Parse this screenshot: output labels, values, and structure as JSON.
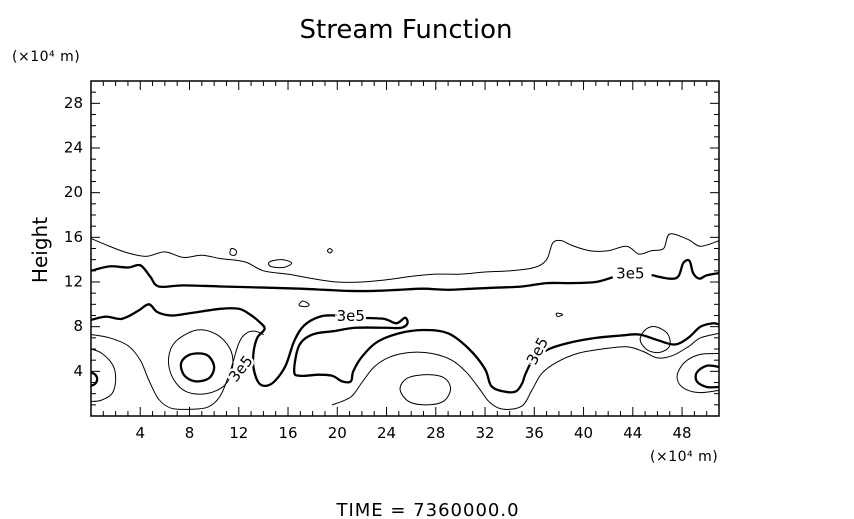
{
  "chart_data": {
    "type": "contour",
    "title": "Stream Function",
    "xlabel": "",
    "ylabel": "Height",
    "x_unit": "(×10⁴ m)",
    "y_unit": "(×10⁴ m)",
    "xlim": [
      0,
      51
    ],
    "ylim": [
      0,
      30
    ],
    "x_ticks": [
      4,
      8,
      12,
      16,
      20,
      24,
      28,
      32,
      36,
      40,
      44,
      48
    ],
    "y_ticks": [
      4,
      8,
      12,
      16,
      20,
      24,
      28
    ],
    "grid": false,
    "footer": "TIME  =  7360000.0",
    "contour_labels": [
      {
        "text": "3e5",
        "x": 43.8,
        "y": 12.7,
        "angle": 0
      },
      {
        "text": "3e5",
        "x": 21.1,
        "y": 8.9,
        "angle": 0
      },
      {
        "text": "3e5",
        "x": 12.2,
        "y": 4.2,
        "angle": -52
      },
      {
        "text": "3e5",
        "x": 36.3,
        "y": 5.8,
        "angle": -62
      }
    ],
    "contours": [
      {
        "role": "upper-thin",
        "weight": "thin",
        "closed": false,
        "points": [
          [
            0,
            15.9
          ],
          [
            1.5,
            15.2
          ],
          [
            3,
            14.6
          ],
          [
            4.5,
            14.3
          ],
          [
            6,
            14.7
          ],
          [
            7.5,
            14.2
          ],
          [
            9,
            14.4
          ],
          [
            10.5,
            14.1
          ],
          [
            12.5,
            13.8
          ],
          [
            14,
            13.0
          ],
          [
            16,
            12.7
          ],
          [
            18,
            12.3
          ],
          [
            20,
            12.0
          ],
          [
            22,
            12.0
          ],
          [
            24,
            12.2
          ],
          [
            26,
            12.5
          ],
          [
            28,
            12.7
          ],
          [
            30,
            12.7
          ],
          [
            32,
            12.9
          ],
          [
            34,
            13.0
          ],
          [
            36,
            13.3
          ],
          [
            37,
            14.0
          ],
          [
            37.5,
            15.5
          ],
          [
            38.2,
            15.7
          ],
          [
            39,
            15.3
          ],
          [
            40.5,
            14.8
          ],
          [
            42,
            14.8
          ],
          [
            43.5,
            15.2
          ],
          [
            44.5,
            14.5
          ],
          [
            45.5,
            14.8
          ],
          [
            46.5,
            15.0
          ],
          [
            47,
            16.3
          ],
          [
            48.5,
            15.8
          ],
          [
            49.5,
            15.2
          ],
          [
            51,
            15.7
          ]
        ]
      },
      {
        "role": "upper-thick",
        "weight": "thick",
        "closed": false,
        "points": [
          [
            0,
            13.0
          ],
          [
            1.5,
            13.4
          ],
          [
            3,
            13.3
          ],
          [
            4,
            13.5
          ],
          [
            4.8,
            12.5
          ],
          [
            5.5,
            11.6
          ],
          [
            7.5,
            11.7
          ],
          [
            10.5,
            11.6
          ],
          [
            14,
            11.5
          ],
          [
            17,
            11.4
          ],
          [
            19,
            11.3
          ],
          [
            21,
            11.2
          ],
          [
            23,
            11.2
          ],
          [
            25,
            11.3
          ],
          [
            27,
            11.4
          ],
          [
            29,
            11.3
          ],
          [
            31,
            11.4
          ],
          [
            33,
            11.5
          ],
          [
            35,
            11.6
          ],
          [
            37,
            11.9
          ],
          [
            39,
            11.9
          ],
          [
            41,
            12.0
          ],
          [
            42.3,
            12.4
          ]
        ]
      },
      {
        "role": "upper-thick-right",
        "weight": "thick",
        "closed": false,
        "points": [
          [
            45.6,
            12.6
          ],
          [
            47.0,
            12.3
          ],
          [
            47.7,
            12.5
          ],
          [
            48.1,
            13.7
          ],
          [
            48.6,
            13.9
          ],
          [
            48.9,
            12.8
          ],
          [
            49.4,
            12.3
          ],
          [
            50.0,
            12.6
          ],
          [
            51,
            12.8
          ]
        ]
      },
      {
        "role": "main-thick",
        "weight": "thick",
        "closed": false,
        "points": [
          [
            0,
            8.6
          ],
          [
            1.2,
            8.9
          ],
          [
            2.5,
            8.7
          ],
          [
            3.8,
            9.4
          ],
          [
            4.7,
            10.0
          ],
          [
            5.4,
            9.3
          ],
          [
            6.5,
            9.0
          ],
          [
            8.0,
            9.2
          ],
          [
            10.5,
            9.6
          ],
          [
            12.0,
            9.6
          ],
          [
            12.9,
            9.1
          ],
          [
            13.7,
            8.4
          ],
          [
            14.1,
            7.8
          ],
          [
            13.5,
            7.0
          ],
          [
            13.2,
            5.7
          ],
          [
            13.2,
            4.3
          ],
          [
            13.6,
            3.0
          ],
          [
            14.2,
            2.7
          ],
          [
            14.9,
            3.1
          ],
          [
            15.8,
            4.5
          ],
          [
            16.5,
            6.7
          ],
          [
            17.3,
            8.1
          ],
          [
            18.6,
            8.9
          ],
          [
            20.0,
            9.0
          ],
          [
            22.0,
            8.8
          ],
          [
            23.8,
            8.7
          ],
          [
            24.8,
            8.3
          ],
          [
            25.5,
            8.8
          ],
          [
            25.7,
            8.3
          ],
          [
            25.2,
            7.9
          ],
          [
            24.0,
            7.9
          ],
          [
            21.5,
            7.9
          ],
          [
            19.7,
            7.6
          ],
          [
            18.0,
            7.3
          ],
          [
            16.9,
            6.3
          ],
          [
            16.5,
            4.0
          ],
          [
            17.0,
            3.6
          ],
          [
            18.5,
            3.7
          ],
          [
            19.6,
            3.6
          ],
          [
            20.4,
            3.1
          ],
          [
            21.1,
            3.1
          ],
          [
            21.3,
            4.0
          ],
          [
            22.0,
            5.3
          ],
          [
            23.2,
            6.6
          ],
          [
            25.0,
            7.4
          ],
          [
            27.0,
            7.7
          ],
          [
            29.0,
            7.4
          ],
          [
            30.7,
            6.0
          ],
          [
            32.0,
            4.2
          ],
          [
            32.5,
            2.7
          ],
          [
            33.5,
            2.2
          ],
          [
            34.5,
            2.2
          ],
          [
            35.0,
            2.9
          ],
          [
            35.3,
            3.8
          ],
          [
            35.9,
            5.0
          ],
          [
            37.2,
            6.0
          ],
          [
            39.0,
            6.6
          ],
          [
            41.0,
            7.0
          ],
          [
            43.0,
            7.2
          ],
          [
            44.5,
            7.3
          ],
          [
            46.0,
            6.8
          ],
          [
            47.4,
            6.4
          ],
          [
            48.5,
            7.0
          ],
          [
            49.5,
            8.0
          ],
          [
            50.5,
            8.3
          ],
          [
            51,
            8.2
          ]
        ]
      },
      {
        "role": "lower-thin",
        "weight": "thin",
        "closed": false,
        "points": [
          [
            0,
            7.3
          ],
          [
            1.5,
            7.0
          ],
          [
            3.0,
            6.3
          ],
          [
            4.0,
            5.0
          ],
          [
            4.7,
            3.2
          ],
          [
            5.5,
            1.5
          ],
          [
            6.5,
            0.7
          ],
          [
            8.0,
            0.6
          ],
          [
            9.5,
            0.8
          ],
          [
            10.5,
            1.8
          ],
          [
            11.3,
            4.0
          ],
          [
            12.0,
            6.5
          ],
          [
            12.6,
            7.4
          ],
          [
            13.3,
            7.6
          ],
          [
            14.0,
            7.3
          ]
        ]
      },
      {
        "role": "lower-thin-2",
        "weight": "thin",
        "closed": false,
        "points": [
          [
            19.6,
            1.0
          ],
          [
            21.1,
            1.7
          ],
          [
            22.0,
            3.0
          ],
          [
            23.0,
            4.4
          ],
          [
            24.3,
            5.3
          ],
          [
            26.0,
            5.7
          ],
          [
            27.7,
            5.6
          ],
          [
            29.3,
            5.0
          ],
          [
            30.5,
            3.9
          ],
          [
            31.5,
            2.5
          ],
          [
            32.4,
            1.2
          ],
          [
            33.5,
            0.6
          ],
          [
            35.0,
            0.9
          ],
          [
            35.8,
            2.3
          ],
          [
            36.6,
            3.8
          ],
          [
            37.8,
            4.8
          ],
          [
            39.5,
            5.6
          ],
          [
            41.5,
            6.0
          ],
          [
            43.5,
            6.2
          ],
          [
            44.8,
            5.8
          ],
          [
            46.0,
            5.2
          ],
          [
            47.2,
            5.4
          ],
          [
            48.5,
            6.2
          ],
          [
            49.5,
            7.0
          ],
          [
            51,
            7.4
          ]
        ]
      },
      {
        "role": "left-edge-ring",
        "weight": "thin",
        "closed": false,
        "points": [
          [
            0,
            6.0
          ],
          [
            0.9,
            5.6
          ],
          [
            1.8,
            4.5
          ],
          [
            2.0,
            3.2
          ],
          [
            1.7,
            2.0
          ],
          [
            0.8,
            1.4
          ],
          [
            0,
            1.3
          ]
        ]
      },
      {
        "role": "left-edge-thick",
        "weight": "thick",
        "closed": false,
        "points": [
          [
            0,
            3.9
          ],
          [
            0.35,
            3.7
          ],
          [
            0.5,
            3.3
          ],
          [
            0.35,
            2.9
          ],
          [
            0,
            2.7
          ]
        ]
      },
      {
        "role": "ring-x8",
        "weight": "thin",
        "closed": true,
        "points": [
          [
            8.6,
            7.7
          ],
          [
            10.2,
            7.3
          ],
          [
            11.3,
            6.0
          ],
          [
            11.5,
            4.4
          ],
          [
            10.9,
            2.8
          ],
          [
            9.4,
            2.0
          ],
          [
            7.7,
            2.2
          ],
          [
            6.6,
            3.5
          ],
          [
            6.3,
            5.2
          ],
          [
            6.9,
            6.7
          ]
        ]
      },
      {
        "role": "blob-x8",
        "weight": "thick",
        "closed": true,
        "points": [
          [
            8.5,
            5.6
          ],
          [
            9.5,
            5.4
          ],
          [
            10.0,
            4.4
          ],
          [
            9.6,
            3.4
          ],
          [
            8.5,
            3.1
          ],
          [
            7.6,
            3.6
          ],
          [
            7.3,
            4.6
          ],
          [
            7.7,
            5.3
          ]
        ]
      },
      {
        "role": "blob-x27",
        "weight": "thin",
        "closed": true,
        "points": [
          [
            27.3,
            3.7
          ],
          [
            28.7,
            3.4
          ],
          [
            29.2,
            2.4
          ],
          [
            28.6,
            1.3
          ],
          [
            27.2,
            1.0
          ],
          [
            25.8,
            1.3
          ],
          [
            25.1,
            2.4
          ],
          [
            25.7,
            3.4
          ]
        ]
      },
      {
        "role": "blob-x46",
        "weight": "thin",
        "closed": true,
        "points": [
          [
            45.8,
            8.0
          ],
          [
            46.8,
            7.4
          ],
          [
            47.0,
            6.3
          ],
          [
            46.2,
            5.7
          ],
          [
            45.2,
            5.9
          ],
          [
            44.6,
            6.8
          ],
          [
            45.0,
            7.7
          ]
        ]
      },
      {
        "role": "right-ring",
        "weight": "thin",
        "closed": false,
        "points": [
          [
            51,
            5.6
          ],
          [
            49.4,
            5.5
          ],
          [
            48.2,
            4.8
          ],
          [
            47.6,
            3.6
          ],
          [
            48.0,
            2.6
          ],
          [
            49.3,
            2.1
          ],
          [
            51,
            2.3
          ]
        ]
      },
      {
        "role": "right-blob",
        "weight": "thick",
        "closed": false,
        "points": [
          [
            51,
            4.4
          ],
          [
            50.0,
            4.5
          ],
          [
            49.2,
            3.9
          ],
          [
            49.2,
            3.1
          ],
          [
            50.0,
            2.6
          ],
          [
            51,
            2.6
          ]
        ]
      },
      {
        "role": "islet-1",
        "weight": "thin",
        "closed": true,
        "points": [
          [
            11.4,
            15.0
          ],
          [
            11.8,
            14.8
          ],
          [
            11.7,
            14.4
          ],
          [
            11.3,
            14.5
          ]
        ]
      },
      {
        "role": "islet-2",
        "weight": "thin",
        "closed": true,
        "points": [
          [
            14.5,
            13.8
          ],
          [
            15.5,
            14.0
          ],
          [
            16.3,
            13.7
          ],
          [
            15.6,
            13.3
          ],
          [
            14.6,
            13.4
          ]
        ]
      },
      {
        "role": "islet-3",
        "weight": "thin",
        "closed": true,
        "points": [
          [
            19.4,
            15.0
          ],
          [
            19.6,
            14.8
          ],
          [
            19.4,
            14.6
          ],
          [
            19.2,
            14.8
          ]
        ]
      },
      {
        "role": "islet-4",
        "weight": "thin",
        "closed": true,
        "points": [
          [
            17.2,
            10.3
          ],
          [
            17.7,
            10.0
          ],
          [
            17.5,
            9.8
          ],
          [
            16.9,
            9.9
          ]
        ]
      },
      {
        "role": "islet-5",
        "weight": "thin",
        "closed": true,
        "points": [
          [
            37.8,
            9.2
          ],
          [
            38.3,
            9.1
          ],
          [
            37.9,
            8.9
          ]
        ]
      }
    ]
  }
}
